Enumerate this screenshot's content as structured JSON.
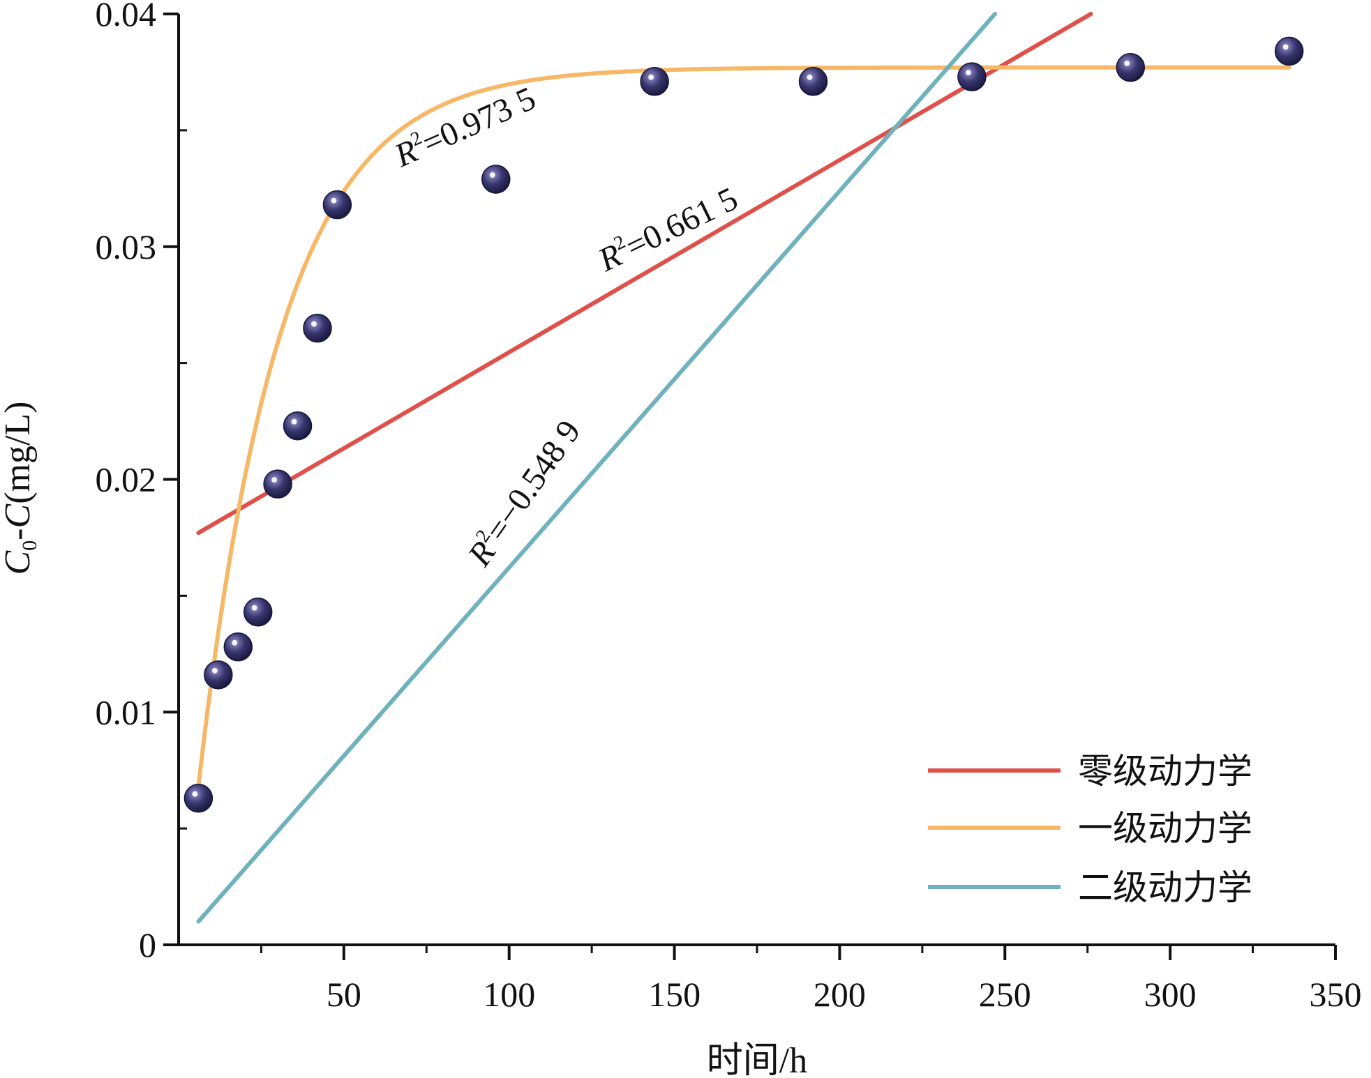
{
  "chart_data": {
    "type": "scatter",
    "xlabel": "时间/h",
    "ylabel_parts": {
      "c": "C",
      "sub": "0",
      "rest": "-",
      "c2": "C",
      "unit": "(mg/L)"
    },
    "xlim": [
      0,
      350
    ],
    "ylim": [
      0,
      0.04
    ],
    "x_ticks": [
      50,
      100,
      150,
      200,
      250,
      300,
      350
    ],
    "x_tick_labels": [
      "50",
      "100",
      "150",
      "200",
      "250",
      "300",
      "350"
    ],
    "y_ticks": [
      0,
      0.01,
      0.02,
      0.03,
      0.04
    ],
    "y_tick_labels": [
      "0",
      "0.01",
      "0.02",
      "0.03",
      "0.04"
    ],
    "grid": false,
    "legend_position": "bottom-right",
    "points": {
      "x": [
        6,
        12,
        18,
        24,
        30,
        36,
        42,
        48,
        96,
        144,
        192,
        240,
        288,
        336
      ],
      "y": [
        0.0063,
        0.0116,
        0.0128,
        0.0143,
        0.0198,
        0.0223,
        0.0265,
        0.0318,
        0.0329,
        0.0371,
        0.0371,
        0.0373,
        0.0377,
        0.0384
      ],
      "color": "#2b2a5e"
    },
    "series": [
      {
        "name": "零级动力学",
        "kind": "linear",
        "color": "#e0504a",
        "x_range": [
          6,
          276
        ],
        "y_start": 0.0177,
        "y_end": 0.04
      },
      {
        "name": "一级动力学",
        "kind": "first-order",
        "color": "#f6b866",
        "x_range": [
          6,
          336
        ],
        "qe": 0.0377,
        "k": 0.04,
        "x0": 1
      },
      {
        "name": "二级动力学",
        "kind": "linear",
        "color": "#6fb1bc",
        "x_range": [
          6,
          247
        ],
        "y_start": 0.001,
        "y_end": 0.04
      }
    ],
    "annotations": [
      {
        "r": "R",
        "sup": "2",
        "value": "=0.973 5",
        "series": "一级动力学"
      },
      {
        "r": "R",
        "sup": "2",
        "value": "=0.661 5",
        "series": "零级动力学"
      },
      {
        "r": "R",
        "sup": "2",
        "value": "=−0.548 9",
        "series": "二级动力学"
      }
    ]
  }
}
